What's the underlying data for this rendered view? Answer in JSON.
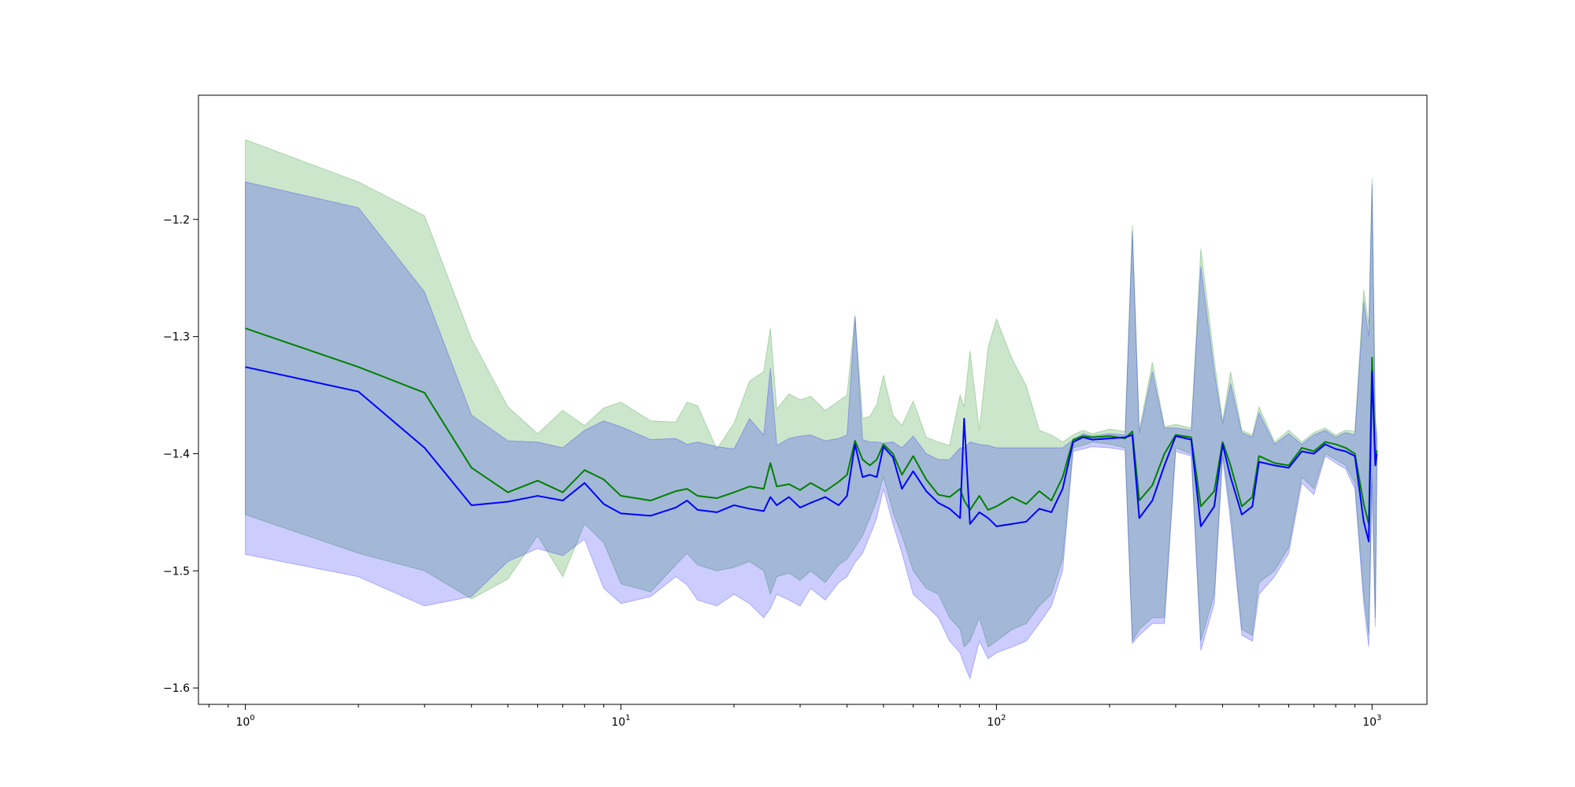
{
  "chart_data": {
    "type": "line",
    "title": "",
    "xlabel": "",
    "ylabel": "",
    "x_scale": "log",
    "xlim": [
      0.75,
      1400
    ],
    "ylim": [
      -1.614,
      -1.094
    ],
    "grid": false,
    "legend": "none",
    "x_ticks": [
      {
        "value": 1,
        "base": "10",
        "exp": "0"
      },
      {
        "value": 10,
        "base": "10",
        "exp": "1"
      },
      {
        "value": 100,
        "base": "10",
        "exp": "2"
      },
      {
        "value": 1000,
        "base": "10",
        "exp": "3"
      }
    ],
    "y_ticks": [
      {
        "value": -1.2,
        "label": "−1.2"
      },
      {
        "value": -1.3,
        "label": "−1.3"
      },
      {
        "value": -1.4,
        "label": "−1.4"
      },
      {
        "value": -1.5,
        "label": "−1.5"
      },
      {
        "value": -1.6,
        "label": "−1.6"
      }
    ],
    "colors": {
      "series_a_line": "#008000",
      "series_a_band": "#008000",
      "series_b_line": "#0000ff",
      "series_b_band": "#0000ff",
      "band_opacity": 0.2
    },
    "series": [
      {
        "color": "#008000",
        "x": [
          1,
          2,
          3,
          4,
          5,
          6,
          7,
          8,
          9,
          10,
          12,
          14,
          15,
          16,
          18,
          20,
          22,
          24,
          25,
          26,
          28,
          30,
          32,
          35,
          38,
          40,
          42,
          44,
          46,
          48,
          50,
          53,
          56,
          60,
          65,
          70,
          75,
          80,
          82,
          85,
          90,
          95,
          100,
          110,
          120,
          130,
          140,
          150,
          160,
          170,
          180,
          200,
          220,
          230,
          240,
          260,
          280,
          300,
          330,
          350,
          380,
          400,
          420,
          450,
          480,
          500,
          550,
          600,
          650,
          700,
          750,
          800,
          850,
          900,
          950,
          980,
          1000,
          1020,
          1030
        ],
        "y": [
          -1.293,
          -1.326,
          -1.348,
          -1.412,
          -1.433,
          -1.423,
          -1.433,
          -1.414,
          -1.422,
          -1.436,
          -1.44,
          -1.432,
          -1.43,
          -1.436,
          -1.438,
          -1.433,
          -1.428,
          -1.43,
          -1.408,
          -1.428,
          -1.426,
          -1.431,
          -1.425,
          -1.432,
          -1.424,
          -1.418,
          -1.389,
          -1.405,
          -1.41,
          -1.405,
          -1.392,
          -1.4,
          -1.418,
          -1.402,
          -1.422,
          -1.435,
          -1.437,
          -1.43,
          -1.44,
          -1.448,
          -1.436,
          -1.448,
          -1.445,
          -1.437,
          -1.443,
          -1.432,
          -1.44,
          -1.42,
          -1.388,
          -1.385,
          -1.386,
          -1.385,
          -1.387,
          -1.381,
          -1.44,
          -1.427,
          -1.4,
          -1.384,
          -1.386,
          -1.445,
          -1.432,
          -1.39,
          -1.41,
          -1.445,
          -1.437,
          -1.402,
          -1.408,
          -1.41,
          -1.395,
          -1.398,
          -1.39,
          -1.392,
          -1.395,
          -1.4,
          -1.443,
          -1.46,
          -1.318,
          -1.405,
          -1.397
        ],
        "upper": [
          -1.132,
          -1.168,
          -1.197,
          -1.302,
          -1.36,
          -1.383,
          -1.363,
          -1.376,
          -1.361,
          -1.356,
          -1.372,
          -1.373,
          -1.356,
          -1.359,
          -1.396,
          -1.374,
          -1.338,
          -1.33,
          -1.293,
          -1.362,
          -1.349,
          -1.354,
          -1.351,
          -1.363,
          -1.355,
          -1.35,
          -1.283,
          -1.37,
          -1.368,
          -1.358,
          -1.333,
          -1.367,
          -1.376,
          -1.355,
          -1.386,
          -1.39,
          -1.393,
          -1.35,
          -1.36,
          -1.312,
          -1.38,
          -1.309,
          -1.285,
          -1.319,
          -1.342,
          -1.38,
          -1.384,
          -1.39,
          -1.384,
          -1.38,
          -1.383,
          -1.379,
          -1.381,
          -1.205,
          -1.38,
          -1.322,
          -1.377,
          -1.375,
          -1.378,
          -1.225,
          -1.32,
          -1.372,
          -1.33,
          -1.38,
          -1.384,
          -1.36,
          -1.39,
          -1.38,
          -1.39,
          -1.382,
          -1.378,
          -1.384,
          -1.38,
          -1.381,
          -1.26,
          -1.29,
          -1.165,
          -1.37,
          -1.385
        ],
        "lower": [
          -1.452,
          -1.485,
          -1.5,
          -1.524,
          -1.507,
          -1.47,
          -1.505,
          -1.46,
          -1.476,
          -1.511,
          -1.518,
          -1.495,
          -1.485,
          -1.495,
          -1.5,
          -1.497,
          -1.492,
          -1.5,
          -1.52,
          -1.505,
          -1.502,
          -1.508,
          -1.5,
          -1.51,
          -1.495,
          -1.49,
          -1.48,
          -1.47,
          -1.455,
          -1.44,
          -1.42,
          -1.45,
          -1.47,
          -1.5,
          -1.515,
          -1.52,
          -1.54,
          -1.55,
          -1.565,
          -1.56,
          -1.54,
          -1.565,
          -1.56,
          -1.55,
          -1.545,
          -1.53,
          -1.52,
          -1.49,
          -1.395,
          -1.393,
          -1.39,
          -1.392,
          -1.395,
          -1.56,
          -1.55,
          -1.54,
          -1.54,
          -1.395,
          -1.4,
          -1.56,
          -1.52,
          -1.4,
          -1.45,
          -1.55,
          -1.555,
          -1.51,
          -1.5,
          -1.48,
          -1.42,
          -1.43,
          -1.4,
          -1.405,
          -1.41,
          -1.425,
          -1.52,
          -1.555,
          -1.42,
          -1.54,
          -1.41
        ]
      },
      {
        "color": "#0000ff",
        "x": [
          1,
          2,
          3,
          4,
          5,
          6,
          7,
          8,
          9,
          10,
          12,
          14,
          15,
          16,
          18,
          20,
          22,
          24,
          25,
          26,
          28,
          30,
          32,
          35,
          38,
          40,
          42,
          44,
          46,
          48,
          50,
          53,
          56,
          60,
          65,
          70,
          75,
          80,
          82,
          85,
          90,
          95,
          100,
          110,
          120,
          130,
          140,
          150,
          160,
          170,
          180,
          200,
          220,
          230,
          240,
          260,
          280,
          300,
          330,
          350,
          380,
          400,
          420,
          450,
          480,
          500,
          550,
          600,
          650,
          700,
          750,
          800,
          850,
          900,
          950,
          980,
          1000,
          1020,
          1030
        ],
        "y": [
          -1.326,
          -1.347,
          -1.395,
          -1.444,
          -1.441,
          -1.436,
          -1.44,
          -1.425,
          -1.443,
          -1.451,
          -1.453,
          -1.446,
          -1.44,
          -1.448,
          -1.45,
          -1.444,
          -1.447,
          -1.449,
          -1.437,
          -1.444,
          -1.437,
          -1.446,
          -1.442,
          -1.437,
          -1.444,
          -1.436,
          -1.392,
          -1.42,
          -1.418,
          -1.42,
          -1.394,
          -1.403,
          -1.43,
          -1.415,
          -1.432,
          -1.442,
          -1.447,
          -1.455,
          -1.37,
          -1.46,
          -1.45,
          -1.455,
          -1.462,
          -1.46,
          -1.458,
          -1.447,
          -1.45,
          -1.43,
          -1.39,
          -1.386,
          -1.388,
          -1.387,
          -1.386,
          -1.384,
          -1.455,
          -1.44,
          -1.41,
          -1.385,
          -1.388,
          -1.462,
          -1.445,
          -1.392,
          -1.42,
          -1.452,
          -1.445,
          -1.407,
          -1.41,
          -1.412,
          -1.398,
          -1.4,
          -1.392,
          -1.396,
          -1.398,
          -1.402,
          -1.458,
          -1.475,
          -1.33,
          -1.41,
          -1.4
        ],
        "upper": [
          -1.168,
          -1.19,
          -1.262,
          -1.367,
          -1.389,
          -1.39,
          -1.395,
          -1.38,
          -1.372,
          -1.377,
          -1.388,
          -1.387,
          -1.392,
          -1.39,
          -1.394,
          -1.396,
          -1.37,
          -1.384,
          -1.327,
          -1.393,
          -1.387,
          -1.385,
          -1.384,
          -1.389,
          -1.387,
          -1.384,
          -1.282,
          -1.388,
          -1.39,
          -1.39,
          -1.391,
          -1.39,
          -1.395,
          -1.385,
          -1.4,
          -1.405,
          -1.405,
          -1.395,
          -1.395,
          -1.39,
          -1.392,
          -1.393,
          -1.395,
          -1.395,
          -1.395,
          -1.395,
          -1.395,
          -1.395,
          -1.388,
          -1.383,
          -1.385,
          -1.383,
          -1.384,
          -1.21,
          -1.383,
          -1.33,
          -1.378,
          -1.378,
          -1.38,
          -1.24,
          -1.33,
          -1.375,
          -1.34,
          -1.382,
          -1.386,
          -1.365,
          -1.392,
          -1.383,
          -1.392,
          -1.384,
          -1.38,
          -1.386,
          -1.382,
          -1.384,
          -1.27,
          -1.3,
          -1.17,
          -1.372,
          -1.387
        ],
        "lower": [
          -1.486,
          -1.505,
          -1.53,
          -1.522,
          -1.492,
          -1.481,
          -1.487,
          -1.473,
          -1.515,
          -1.528,
          -1.522,
          -1.505,
          -1.512,
          -1.525,
          -1.53,
          -1.52,
          -1.528,
          -1.54,
          -1.532,
          -1.52,
          -1.525,
          -1.53,
          -1.515,
          -1.525,
          -1.51,
          -1.505,
          -1.493,
          -1.485,
          -1.47,
          -1.455,
          -1.43,
          -1.46,
          -1.485,
          -1.52,
          -1.53,
          -1.54,
          -1.56,
          -1.57,
          -1.58,
          -1.592,
          -1.56,
          -1.575,
          -1.57,
          -1.565,
          -1.56,
          -1.545,
          -1.53,
          -1.5,
          -1.398,
          -1.396,
          -1.394,
          -1.395,
          -1.397,
          -1.562,
          -1.555,
          -1.545,
          -1.545,
          -1.398,
          -1.402,
          -1.568,
          -1.528,
          -1.403,
          -1.458,
          -1.555,
          -1.56,
          -1.52,
          -1.505,
          -1.485,
          -1.425,
          -1.435,
          -1.402,
          -1.408,
          -1.413,
          -1.43,
          -1.528,
          -1.565,
          -1.425,
          -1.548,
          -1.415
        ]
      }
    ]
  }
}
